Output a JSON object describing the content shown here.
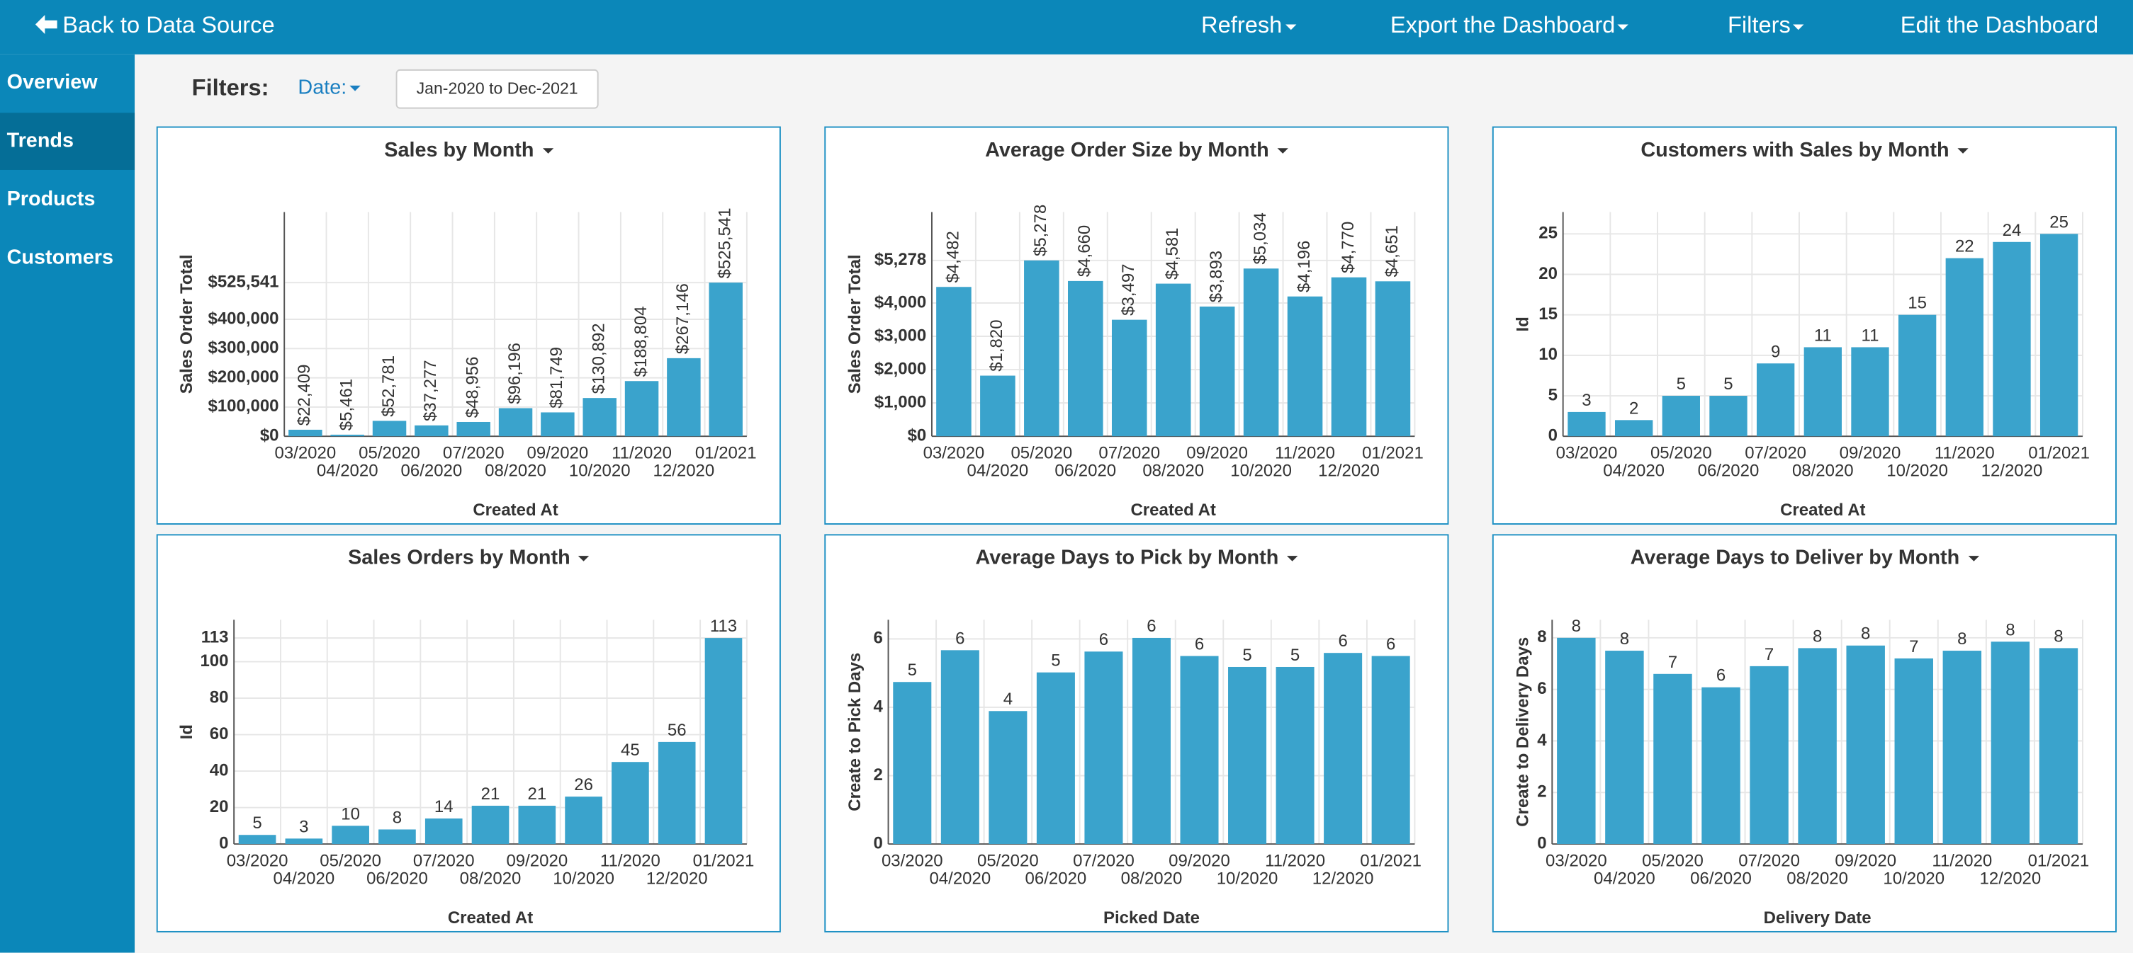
{
  "top_bar": {
    "back": "Back to Data Source",
    "menu": [
      "Refresh",
      "Export the Dashboard",
      "Filters",
      "Edit the Dashboard"
    ]
  },
  "sidebar": {
    "items": [
      "Overview",
      "Trends",
      "Products",
      "Customers"
    ],
    "active": "Trends"
  },
  "filters": {
    "label": "Filters:",
    "date": "Date:",
    "range": "Jan-2020 to Dec-2021"
  },
  "chart_data": [
    {
      "type": "bar",
      "title": "Sales by Month",
      "xlabel": "Created At",
      "ylabel": "Sales Order Total",
      "color": "#3aa3cc",
      "grid": true,
      "categories": [
        "03/2020",
        "04/2020",
        "05/2020",
        "06/2020",
        "07/2020",
        "08/2020",
        "09/2020",
        "10/2020",
        "11/2020",
        "12/2020",
        "01/2021"
      ],
      "values": [
        22409,
        5461,
        52781,
        37277,
        48956,
        96196,
        81749,
        130892,
        188804,
        267146,
        525541
      ],
      "value_labels": [
        "$22,409",
        "$5,461",
        "$52,781",
        "$37,277",
        "$48,956",
        "$96,196",
        "$81,749",
        "$130,892",
        "$188,804",
        "$267,146",
        "$525,541"
      ],
      "ylim": [
        0,
        767000
      ],
      "yticks": [
        {
          "value": 0,
          "label": "$0"
        },
        {
          "value": 100000,
          "label": "$100,000"
        },
        {
          "value": 200000,
          "label": "$200,000"
        },
        {
          "value": 300000,
          "label": "$300,000"
        },
        {
          "value": 400000,
          "label": "$400,000"
        },
        {
          "value": 525541,
          "label": "$525,541"
        }
      ]
    },
    {
      "type": "bar",
      "title": "Average Order Size by Month",
      "xlabel": "Created At",
      "ylabel": "Sales Order Total",
      "color": "#3aa3cc",
      "grid": true,
      "categories": [
        "03/2020",
        "04/2020",
        "05/2020",
        "06/2020",
        "07/2020",
        "08/2020",
        "09/2020",
        "10/2020",
        "11/2020",
        "12/2020",
        "01/2021"
      ],
      "values": [
        4482,
        1820,
        5278,
        4660,
        3497,
        4581,
        3893,
        5034,
        4196,
        4770,
        4651
      ],
      "value_labels": [
        "$4,482",
        "$1,820",
        "$5,278",
        "$4,660",
        "$3,497",
        "$4,581",
        "$3,893",
        "$5,034",
        "$4,196",
        "$4,770",
        "$4,651"
      ],
      "ylim": [
        0,
        6730
      ],
      "yticks": [
        {
          "value": 0,
          "label": "$0"
        },
        {
          "value": 1000,
          "label": "$1,000"
        },
        {
          "value": 2000,
          "label": "$2,000"
        },
        {
          "value": 3000,
          "label": "$3,000"
        },
        {
          "value": 4000,
          "label": "$4,000"
        },
        {
          "value": 5278,
          "label": "$5,278"
        }
      ]
    },
    {
      "type": "bar",
      "title": "Customers with Sales by Month",
      "xlabel": "Created At",
      "ylabel": "Id",
      "color": "#3aa3cc",
      "grid": true,
      "categories": [
        "03/2020",
        "04/2020",
        "05/2020",
        "06/2020",
        "07/2020",
        "08/2020",
        "09/2020",
        "10/2020",
        "11/2020",
        "12/2020",
        "01/2021"
      ],
      "values": [
        3,
        2,
        5,
        5,
        9,
        11,
        11,
        15,
        22,
        24,
        25
      ],
      "ylim": [
        0,
        27.7
      ],
      "yticks": [
        0,
        5,
        10,
        15,
        20,
        25
      ]
    },
    {
      "type": "bar",
      "title": "Sales Orders by Month",
      "xlabel": "Created At",
      "ylabel": "Id",
      "color": "#3aa3cc",
      "grid": true,
      "categories": [
        "03/2020",
        "04/2020",
        "05/2020",
        "06/2020",
        "07/2020",
        "08/2020",
        "09/2020",
        "10/2020",
        "11/2020",
        "12/2020",
        "01/2021"
      ],
      "values": [
        5,
        3,
        10,
        8,
        14,
        21,
        21,
        26,
        45,
        56,
        113
      ],
      "ylim": [
        0,
        123
      ],
      "yticks": [
        0,
        20,
        40,
        60,
        80,
        100,
        113
      ]
    },
    {
      "type": "bar",
      "title": "Average Days to Pick by Month",
      "xlabel": "Picked Date",
      "ylabel": "Create to Pick Days",
      "color": "#3aa3cc",
      "grid": true,
      "categories": [
        "03/2020",
        "04/2020",
        "05/2020",
        "06/2020",
        "07/2020",
        "08/2020",
        "09/2020",
        "10/2020",
        "11/2020",
        "12/2020",
        "01/2021"
      ],
      "values": [
        4.74,
        5.67,
        3.89,
        5.02,
        5.63,
        6.03,
        5.5,
        5.18,
        5.18,
        5.59,
        5.5
      ],
      "value_labels": [
        "5",
        "6",
        "4",
        "5",
        "6",
        "6",
        "6",
        "5",
        "5",
        "6",
        "6"
      ],
      "ylim": [
        0,
        6.56
      ],
      "yticks": [
        0,
        2,
        4,
        6
      ]
    },
    {
      "type": "bar",
      "title": "Average Days to Deliver by Month",
      "xlabel": "Delivery Date",
      "ylabel": "Create to Delivery Days",
      "color": "#3aa3cc",
      "grid": true,
      "categories": [
        "03/2020",
        "04/2020",
        "05/2020",
        "06/2020",
        "07/2020",
        "08/2020",
        "09/2020",
        "10/2020",
        "11/2020",
        "12/2020",
        "01/2021"
      ],
      "values": [
        8.0,
        7.5,
        6.6,
        6.08,
        6.9,
        7.6,
        7.7,
        7.2,
        7.5,
        7.85,
        7.6
      ],
      "value_labels": [
        "8",
        "8",
        "7",
        "6",
        "7",
        "8",
        "8",
        "7",
        "8",
        "8",
        "8"
      ],
      "ylim": [
        0,
        8.7
      ],
      "yticks": [
        0,
        2,
        4,
        6,
        8
      ]
    }
  ]
}
